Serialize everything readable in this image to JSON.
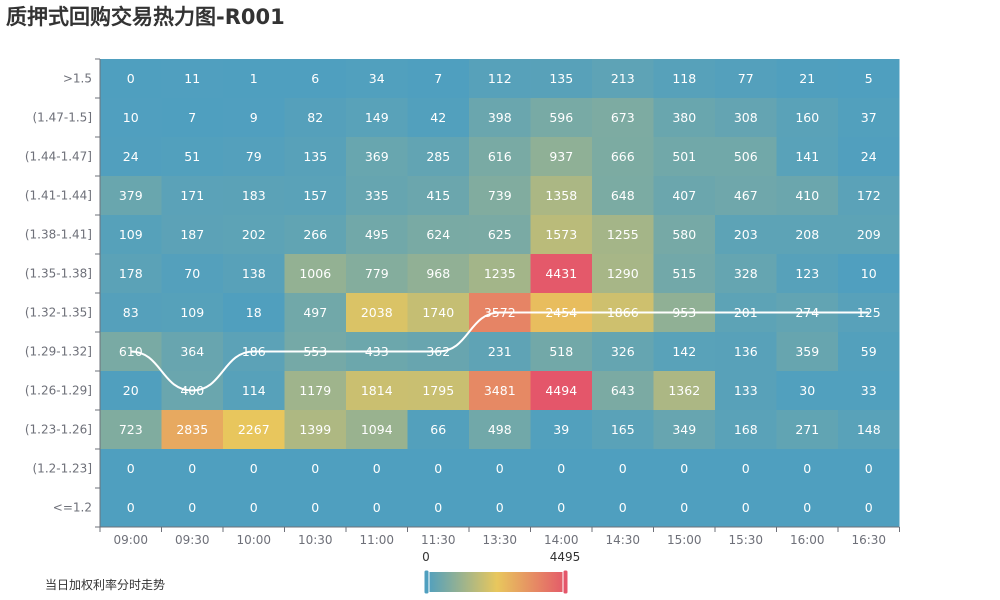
{
  "chart_data": {
    "type": "heatmap",
    "title": "质押式回购交易热力图-R001",
    "x_categories": [
      "09:00",
      "09:30",
      "10:00",
      "10:30",
      "11:00",
      "11:30",
      "13:30",
      "14:00",
      "14:30",
      "15:00",
      "15:30",
      "16:00",
      "16:30"
    ],
    "y_categories": [
      ">1.5",
      "(1.47-1.5]",
      "(1.44-1.47]",
      "(1.41-1.44]",
      "(1.38-1.41]",
      "(1.35-1.38]",
      "(1.32-1.35]",
      "(1.29-1.32]",
      "(1.26-1.29]",
      "(1.23-1.26]",
      "(1.2-1.23]",
      "<=1.2"
    ],
    "values": [
      [
        0,
        11,
        1,
        6,
        34,
        7,
        112,
        135,
        213,
        118,
        77,
        21,
        5
      ],
      [
        10,
        7,
        9,
        82,
        149,
        42,
        398,
        596,
        673,
        380,
        308,
        160,
        37
      ],
      [
        24,
        51,
        79,
        135,
        369,
        285,
        616,
        937,
        666,
        501,
        506,
        141,
        24
      ],
      [
        379,
        171,
        183,
        157,
        335,
        415,
        739,
        1358,
        648,
        407,
        467,
        410,
        172
      ],
      [
        109,
        187,
        202,
        266,
        495,
        624,
        625,
        1573,
        1255,
        580,
        203,
        208,
        209
      ],
      [
        178,
        70,
        138,
        1006,
        779,
        968,
        1235,
        4431,
        1290,
        515,
        328,
        123,
        10
      ],
      [
        83,
        109,
        18,
        497,
        2038,
        1740,
        3572,
        2454,
        1866,
        953,
        201,
        274,
        125
      ],
      [
        610,
        364,
        186,
        553,
        433,
        362,
        231,
        518,
        326,
        142,
        136,
        359,
        59
      ],
      [
        20,
        400,
        114,
        1179,
        1814,
        1795,
        3481,
        4494,
        643,
        1362,
        133,
        30,
        33
      ],
      [
        723,
        2835,
        2267,
        1399,
        1094,
        66,
        498,
        39,
        165,
        349,
        168,
        271,
        148
      ],
      [
        0,
        0,
        0,
        0,
        0,
        0,
        0,
        0,
        0,
        0,
        0,
        0,
        0
      ],
      [
        0,
        0,
        0,
        0,
        0,
        0,
        0,
        0,
        0,
        0,
        0,
        0,
        0
      ]
    ],
    "series_line": {
      "name": "当日加权利率分时走势",
      "y_category_by_x": [
        "(1.29-1.32]",
        "(1.26-1.29]",
        "(1.29-1.32]",
        "(1.29-1.32]",
        "(1.29-1.32]",
        "(1.29-1.32]",
        "(1.32-1.35]",
        "(1.32-1.35]",
        "(1.32-1.35]",
        "(1.32-1.35]",
        "(1.32-1.35]",
        "(1.32-1.35]",
        "(1.32-1.35]"
      ]
    },
    "visual_map": {
      "min": 0,
      "max": 4495,
      "min_label": "0",
      "max_label": "4495"
    },
    "colors": [
      "#4f9fbf",
      "#e8c75d",
      "#e4566a"
    ],
    "legend_label": "当日加权利率分时走势"
  }
}
